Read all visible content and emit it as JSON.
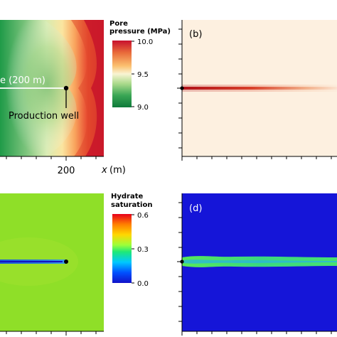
{
  "panels": {
    "a": {
      "xlabel_var": "x",
      "xlabel_unit": "(m)",
      "tick_label": "200",
      "fracture_label": "e (200 m)",
      "well_label": "Production well"
    },
    "b": {
      "label": "(b)"
    },
    "c": {},
    "d": {
      "label": "(d)"
    }
  },
  "colorbars": {
    "pressure": {
      "title_line1": "Pore",
      "title_line2": "pressure (MPa)",
      "ticks": [
        "10.0",
        "9.5",
        "9.0"
      ],
      "colormap": "RdYlGn_r",
      "colors": [
        "#c8102e",
        "#e86a3a",
        "#fbc070",
        "#f9f4d3",
        "#a8d98a",
        "#3aa655",
        "#0e7a3a"
      ]
    },
    "saturation": {
      "title_line1": "Hydrate",
      "title_line2": "saturation",
      "ticks": [
        "0.6",
        "0.3",
        "0.0"
      ],
      "colormap": "jet",
      "colors": [
        "#e8001b",
        "#ff7f00",
        "#ffd700",
        "#9cff3a",
        "#1ee878",
        "#00c8ff",
        "#0050ff",
        "#1212c8"
      ]
    }
  },
  "chart_data": [
    {
      "type": "heatmap",
      "panel": "a",
      "field": "pore pressure",
      "unit": "MPa",
      "xlabel": "x (m)",
      "x_ticks": [
        "200"
      ],
      "colorbar_range": [
        9.0,
        10.0
      ],
      "annotations": [
        "e (200 m)",
        "Production well"
      ]
    },
    {
      "type": "heatmap",
      "panel": "b",
      "label": "(b)",
      "description_values": {
        "background_level": "low",
        "fracture_line": "high"
      }
    },
    {
      "type": "heatmap",
      "panel": "c",
      "field": "hydrate saturation",
      "colorbar_range": [
        0.0,
        0.6
      ]
    },
    {
      "type": "heatmap",
      "panel": "d",
      "label": "(d)"
    }
  ],
  "colors": {
    "pressure_background": "#fdf0e0",
    "fracture_red": "#c0161e",
    "saturation_background": "#8fdf28",
    "low_saturation_blue": "#1515d8",
    "fracture_green": "#52e85a",
    "fracture_blue": "#1a4ad0"
  }
}
